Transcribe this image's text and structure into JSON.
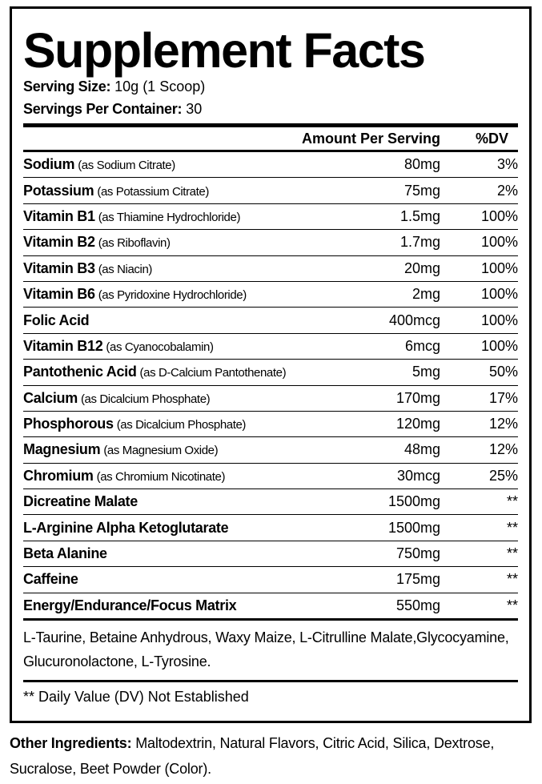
{
  "header": {
    "title": "Supplement Facts"
  },
  "serving_size": {
    "label": "Serving Size:",
    "value": "10g (1 Scoop)"
  },
  "servings_per_container": {
    "label": "Servings Per Container:",
    "value": "30"
  },
  "columns": {
    "amount": "Amount Per Serving",
    "dv": "%DV"
  },
  "rows": [
    {
      "name": "Sodium",
      "source": "(as Sodium Citrate)",
      "amount": "80mg",
      "dv": "3%"
    },
    {
      "name": "Potassium",
      "source": "(as Potassium Citrate)",
      "amount": "75mg",
      "dv": "2%"
    },
    {
      "name": "Vitamin B1",
      "source": "(as Thiamine Hydrochloride)",
      "amount": "1.5mg",
      "dv": "100%"
    },
    {
      "name": "Vitamin B2",
      "source": "(as Riboflavin)",
      "amount": "1.7mg",
      "dv": "100%"
    },
    {
      "name": "Vitamin B3",
      "source": "(as Niacin)",
      "amount": "20mg",
      "dv": "100%"
    },
    {
      "name": "Vitamin B6",
      "source": "(as Pyridoxine Hydrochloride)",
      "amount": "2mg",
      "dv": "100%"
    },
    {
      "name": "Folic Acid",
      "source": null,
      "amount": "400mcg",
      "dv": "100%"
    },
    {
      "name": "Vitamin B12",
      "source": "(as Cyanocobalamin)",
      "amount": "6mcg",
      "dv": "100%"
    },
    {
      "name": "Pantothenic Acid",
      "source": "(as D-Calcium Pantothenate)",
      "amount": "5mg",
      "dv": "50%"
    },
    {
      "name": "Calcium",
      "source": "(as Dicalcium Phosphate)",
      "amount": "170mg",
      "dv": "17%"
    },
    {
      "name": "Phosphorous",
      "source": "(as Dicalcium Phosphate)",
      "amount": "120mg",
      "dv": "12%"
    },
    {
      "name": "Magnesium",
      "source": "(as Magnesium Oxide)",
      "amount": "48mg",
      "dv": "12%"
    },
    {
      "name": "Chromium",
      "source": "(as Chromium Nicotinate)",
      "amount": "30mcg",
      "dv": "25%"
    },
    {
      "name": "Dicreatine Malate",
      "source": null,
      "amount": "1500mg",
      "dv": "**"
    },
    {
      "name": "L-Arginine Alpha Ketoglutarate",
      "source": null,
      "amount": "1500mg",
      "dv": "**"
    },
    {
      "name": "Beta Alanine",
      "source": null,
      "amount": "750mg",
      "dv": "**"
    },
    {
      "name": "Caffeine",
      "source": null,
      "amount": "175mg",
      "dv": "**"
    },
    {
      "name": "Energy/Endurance/Focus Matrix",
      "source": null,
      "amount": "550mg",
      "dv": "**"
    }
  ],
  "blend_ingredients": "L-Taurine, Betaine Anhydrous, Waxy Maize,  L-Citrulline Malate,Glycocyamine, Glucuronolactone, L-Tyrosine.",
  "footnote": "** Daily Value (DV) Not Established",
  "other_ingredients": {
    "label": "Other Ingredients:",
    "text": "Maltodextrin, Natural Flavors, Citric Acid, Silica, Dextrose, Sucralose, Beet Powder (Color)."
  }
}
